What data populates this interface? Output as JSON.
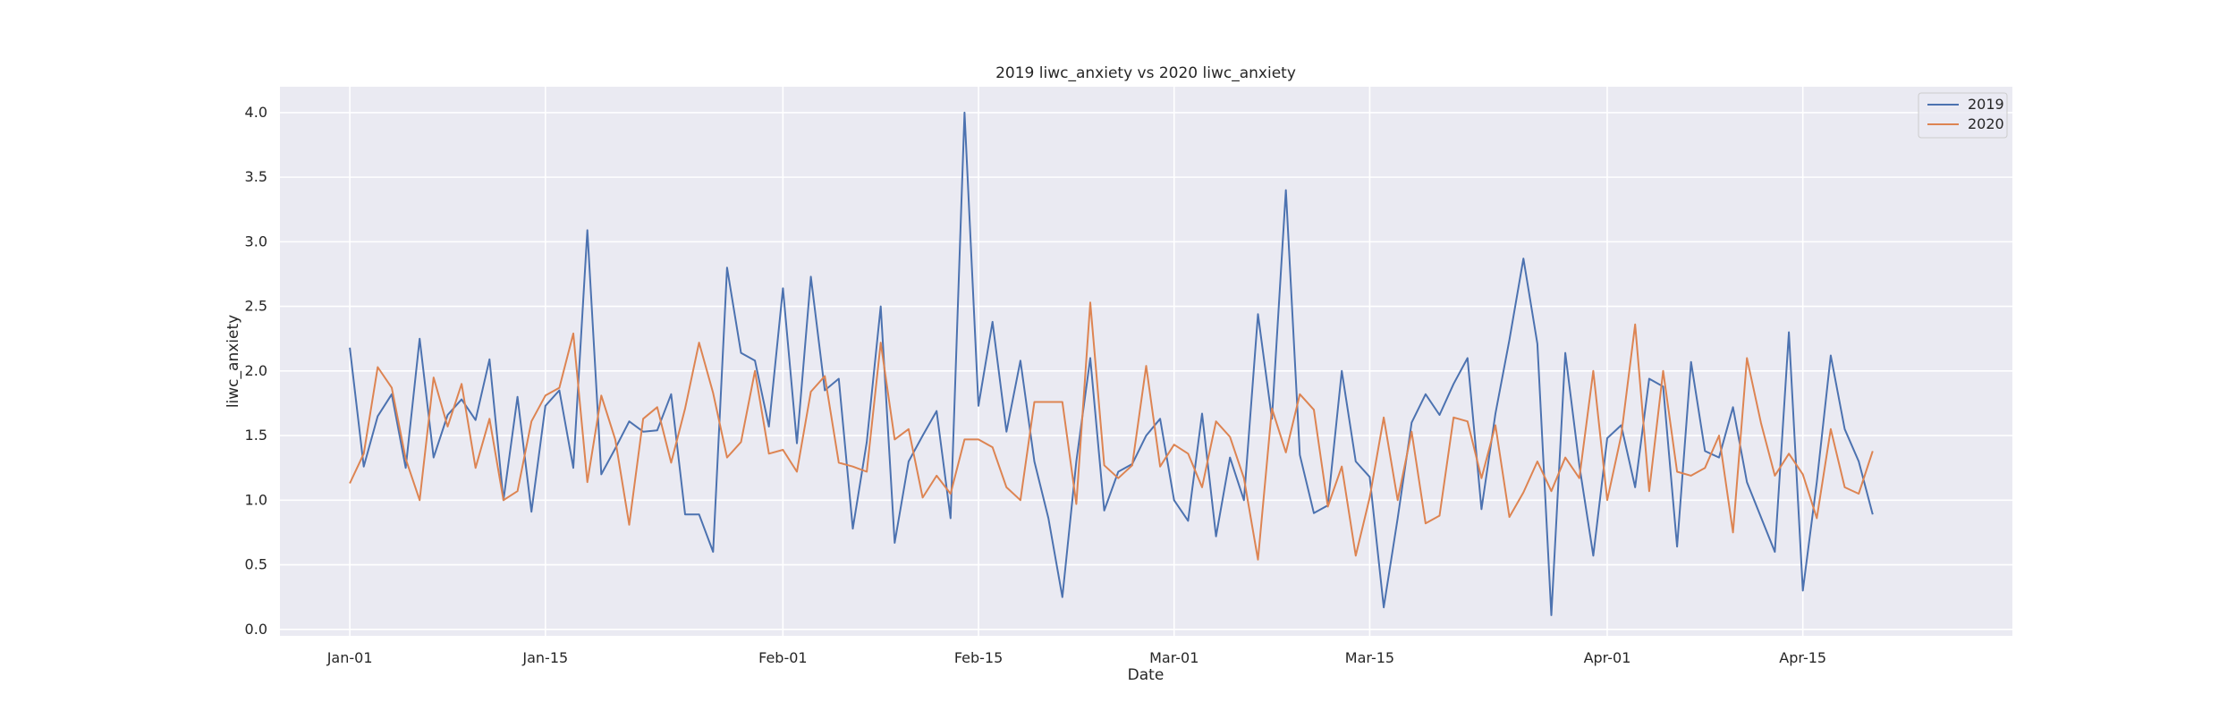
{
  "chart_data": {
    "type": "line",
    "title": "2019 liwc_anxiety vs 2020 liwc_anxiety",
    "xlabel": "Date",
    "ylabel": "liwc_anxiety",
    "x_start": "2019-01-01",
    "x_interval_days": 1,
    "xlim": [
      "2018-12-27",
      "2019-04-30"
    ],
    "ylim": [
      -0.05,
      4.2
    ],
    "x_ticks": [
      {
        "date": "2019-01-01",
        "label": "Jan-01"
      },
      {
        "date": "2019-01-15",
        "label": "Jan-15"
      },
      {
        "date": "2019-02-01",
        "label": "Feb-01"
      },
      {
        "date": "2019-02-15",
        "label": "Feb-15"
      },
      {
        "date": "2019-03-01",
        "label": "Mar-01"
      },
      {
        "date": "2019-03-15",
        "label": "Mar-15"
      },
      {
        "date": "2019-04-01",
        "label": "Apr-01"
      },
      {
        "date": "2019-04-15",
        "label": "Apr-15"
      }
    ],
    "y_ticks": [
      0.0,
      0.5,
      1.0,
      1.5,
      2.0,
      2.5,
      3.0,
      3.5,
      4.0
    ],
    "y_tick_labels": [
      "0.0",
      "0.5",
      "1.0",
      "1.5",
      "2.0",
      "2.5",
      "3.0",
      "3.5",
      "4.0"
    ],
    "grid": true,
    "legend_position": "top-right",
    "background": "#eaeaf2",
    "series": [
      {
        "name": "2019",
        "color": "#4c72b0",
        "values": [
          2.18,
          1.26,
          1.65,
          1.82,
          1.25,
          2.25,
          1.33,
          1.66,
          1.78,
          1.62,
          2.09,
          1.0,
          1.8,
          0.91,
          1.73,
          1.85,
          1.25,
          3.09,
          1.2,
          1.4,
          1.61,
          1.53,
          1.54,
          1.82,
          0.89,
          0.89,
          0.6,
          2.8,
          2.14,
          2.08,
          1.57,
          2.64,
          1.44,
          2.73,
          1.85,
          1.94,
          0.78,
          1.45,
          2.5,
          0.67,
          1.3,
          1.5,
          1.69,
          0.86,
          4.0,
          1.73,
          2.38,
          1.53,
          2.08,
          1.3,
          0.86,
          0.25,
          1.3,
          2.1,
          0.92,
          1.22,
          1.28,
          1.5,
          1.63,
          1.0,
          0.84,
          1.67,
          0.72,
          1.33,
          1.0,
          2.44,
          1.63,
          3.4,
          1.35,
          0.9,
          0.96,
          2.0,
          1.3,
          1.18,
          0.17,
          0.86,
          1.6,
          1.82,
          1.66,
          1.9,
          2.1,
          0.93,
          1.67,
          2.24,
          2.87,
          2.21,
          0.11,
          2.14,
          1.27,
          0.57,
          1.48,
          1.58,
          1.1,
          1.94,
          1.88,
          0.64,
          2.07,
          1.38,
          1.33,
          1.72,
          1.14,
          0.87,
          0.6,
          2.3,
          0.3,
          1.14,
          2.12,
          1.55,
          1.3,
          0.89
        ]
      },
      {
        "name": "2020",
        "color": "#dd8452",
        "values": [
          1.13,
          1.36,
          2.03,
          1.87,
          1.32,
          1.0,
          1.95,
          1.57,
          1.9,
          1.25,
          1.63,
          1.0,
          1.07,
          1.61,
          1.81,
          1.87,
          2.29,
          1.14,
          1.81,
          1.47,
          0.81,
          1.63,
          1.72,
          1.29,
          1.71,
          2.22,
          1.83,
          1.33,
          1.45,
          2.0,
          1.36,
          1.39,
          1.22,
          1.84,
          1.96,
          1.29,
          1.26,
          1.22,
          2.22,
          1.47,
          1.55,
          1.02,
          1.19,
          1.05,
          1.47,
          1.47,
          1.41,
          1.1,
          1.0,
          1.76,
          1.76,
          1.76,
          0.97,
          2.53,
          1.27,
          1.17,
          1.27,
          2.04,
          1.26,
          1.43,
          1.36,
          1.1,
          1.61,
          1.49,
          1.17,
          0.54,
          1.71,
          1.37,
          1.82,
          1.7,
          0.95,
          1.26,
          0.57,
          1.02,
          1.64,
          1.0,
          1.53,
          0.82,
          0.88,
          1.64,
          1.61,
          1.17,
          1.58,
          0.87,
          1.06,
          1.3,
          1.07,
          1.33,
          1.17,
          2.0,
          1.0,
          1.5,
          2.36,
          1.07,
          2.0,
          1.22,
          1.19,
          1.25,
          1.5,
          0.75,
          2.1,
          1.6,
          1.19,
          1.36,
          1.2,
          0.86,
          1.55,
          1.1,
          1.05,
          1.38
        ]
      }
    ]
  }
}
